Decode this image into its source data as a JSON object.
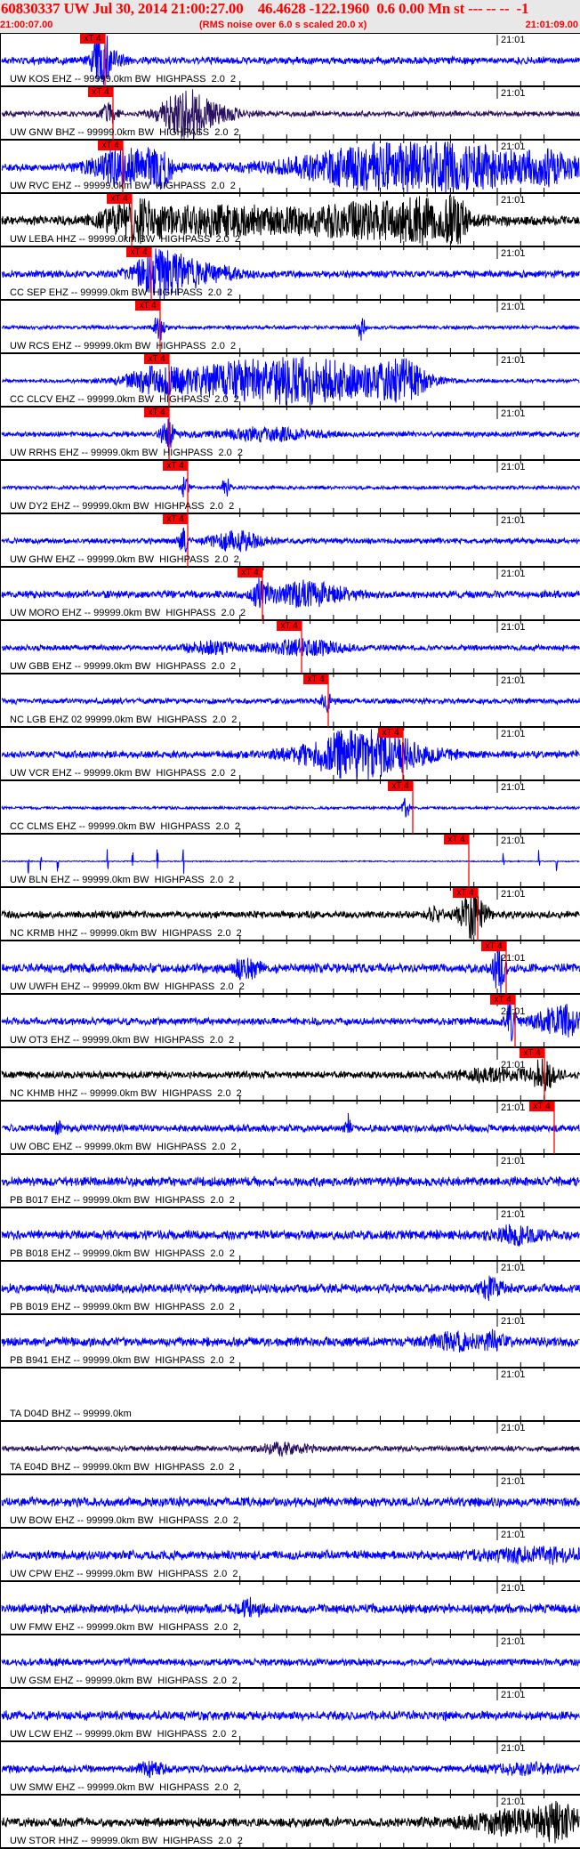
{
  "header": {
    "title": "60830337 UW Jul 30, 2014 21:00:27.00    46.4628 -122.1960  0.6 0.00 Mn st --- -- --  -1",
    "start_time": "21:00:07.00",
    "note": "(RMS noise over 6.0 s scaled 20.0 x)",
    "end_time": "21:01:09.00"
  },
  "minute_label": "21:01",
  "pick_label": "xT 4",
  "colors": {
    "blue": "#0000ff",
    "purple": "#2a1060",
    "black": "#000000",
    "pick": "#ff0000"
  },
  "traces": [
    {
      "label": "UW KOS EHZ -- 99999.0km BW  HIGHPASS  2.0  2",
      "color": "blue",
      "pick": true
    },
    {
      "label": "UW GNW BHZ -- 99999.0km BW  HIGHPASS  2.0  2",
      "color": "purple",
      "pick": true
    },
    {
      "label": "UW RVC EHZ -- 99999.0km BW  HIGHPASS  2.0  2",
      "color": "blue",
      "pick": true
    },
    {
      "label": "UW LEBA HHZ -- 99999.0km BW  HIGHPASS  2.0  2",
      "color": "black",
      "pick": true
    },
    {
      "label": "CC SEP EHZ -- 99999.0km BW  HIGHPASS  2.0  2",
      "color": "blue",
      "pick": true
    },
    {
      "label": "UW RCS EHZ -- 99999.0km BW  HIGHPASS  2.0  2",
      "color": "blue",
      "pick": true
    },
    {
      "label": "CC CLCV EHZ -- 99999.0km BW  HIGHPASS  2.0  2",
      "color": "blue",
      "pick": true
    },
    {
      "label": "UW RRHS EHZ -- 99999.0km BW  HIGHPASS  2.0  2",
      "color": "blue",
      "pick": true
    },
    {
      "label": "UW DY2 EHZ -- 99999.0km BW  HIGHPASS  2.0  2",
      "color": "blue",
      "pick": true
    },
    {
      "label": "UW GHW EHZ -- 99999.0km BW  HIGHPASS  2.0  2",
      "color": "blue",
      "pick": true
    },
    {
      "label": "UW MORO EHZ -- 99999.0km BW  HIGHPASS  2.0  2",
      "color": "blue",
      "pick": true
    },
    {
      "label": "UW GBB EHZ -- 99999.0km BW  HIGHPASS  2.0  2",
      "color": "blue",
      "pick": true
    },
    {
      "label": "NC LGB EHZ 02 99999.0km BW  HIGHPASS  2.0  2",
      "color": "blue",
      "pick": true
    },
    {
      "label": "UW VCR EHZ -- 99999.0km BW  HIGHPASS  2.0  2",
      "color": "blue",
      "pick": true
    },
    {
      "label": "CC CLMS EHZ -- 99999.0km BW  HIGHPASS  2.0  2",
      "color": "blue",
      "pick": true
    },
    {
      "label": "UW BLN EHZ -- 99999.0km BW  HIGHPASS  2.0  2",
      "color": "blue",
      "pick": true
    },
    {
      "label": "NC KRMB HHZ -- 99999.0km BW  HIGHPASS  2.0  2",
      "color": "black",
      "pick": true
    },
    {
      "label": "UW UWFH EHZ -- 99999.0km BW  HIGHPASS  2.0  2",
      "color": "blue",
      "pick": true
    },
    {
      "label": "UW OT3 EHZ -- 99999.0km BW  HIGHPASS  2.0  2",
      "color": "blue",
      "pick": true
    },
    {
      "label": "NC KHMB HHZ -- 99999.0km BW  HIGHPASS  2.0  2",
      "color": "black",
      "pick": true
    },
    {
      "label": "UW OBC EHZ -- 99999.0km BW  HIGHPASS  2.0  2",
      "color": "blue",
      "pick": true
    },
    {
      "label": "PB B017 EHZ -- 99999.0km BW  HIGHPASS  2.0  2",
      "color": "blue",
      "pick": false
    },
    {
      "label": "PB B018 EHZ -- 99999.0km BW  HIGHPASS  2.0  2",
      "color": "blue",
      "pick": false
    },
    {
      "label": "PB B019 EHZ -- 99999.0km BW  HIGHPASS  2.0  2",
      "color": "blue",
      "pick": false
    },
    {
      "label": "PB B941 EHZ -- 99999.0km BW  HIGHPASS  2.0  2",
      "color": "blue",
      "pick": false
    },
    {
      "label": "TA D04D BHZ -- 99999.0km",
      "color": "purple",
      "pick": false
    },
    {
      "label": "TA E04D BHZ -- 99999.0km BW  HIGHPASS  2.0  2",
      "color": "purple",
      "pick": false
    },
    {
      "label": "UW BOW EHZ -- 99999.0km BW  HIGHPASS  2.0  2",
      "color": "blue",
      "pick": false
    },
    {
      "label": "UW CPW EHZ -- 99999.0km BW  HIGHPASS  2.0  2",
      "color": "blue",
      "pick": false
    },
    {
      "label": "UW FMW EHZ -- 99999.0km BW  HIGHPASS  2.0  2",
      "color": "blue",
      "pick": false
    },
    {
      "label": "UW GSM EHZ -- 99999.0km BW  HIGHPASS  2.0  2",
      "color": "blue",
      "pick": false
    },
    {
      "label": "UW LCW EHZ -- 99999.0km BW  HIGHPASS  2.0  2",
      "color": "blue",
      "pick": false
    },
    {
      "label": "UW SMW EHZ -- 99999.0km BW  HIGHPASS  2.0  2",
      "color": "blue",
      "pick": false
    },
    {
      "label": "UW STOR HHZ -- 99999.0km BW  HIGHPASS  2.0  2",
      "color": "black",
      "pick": false
    }
  ]
}
